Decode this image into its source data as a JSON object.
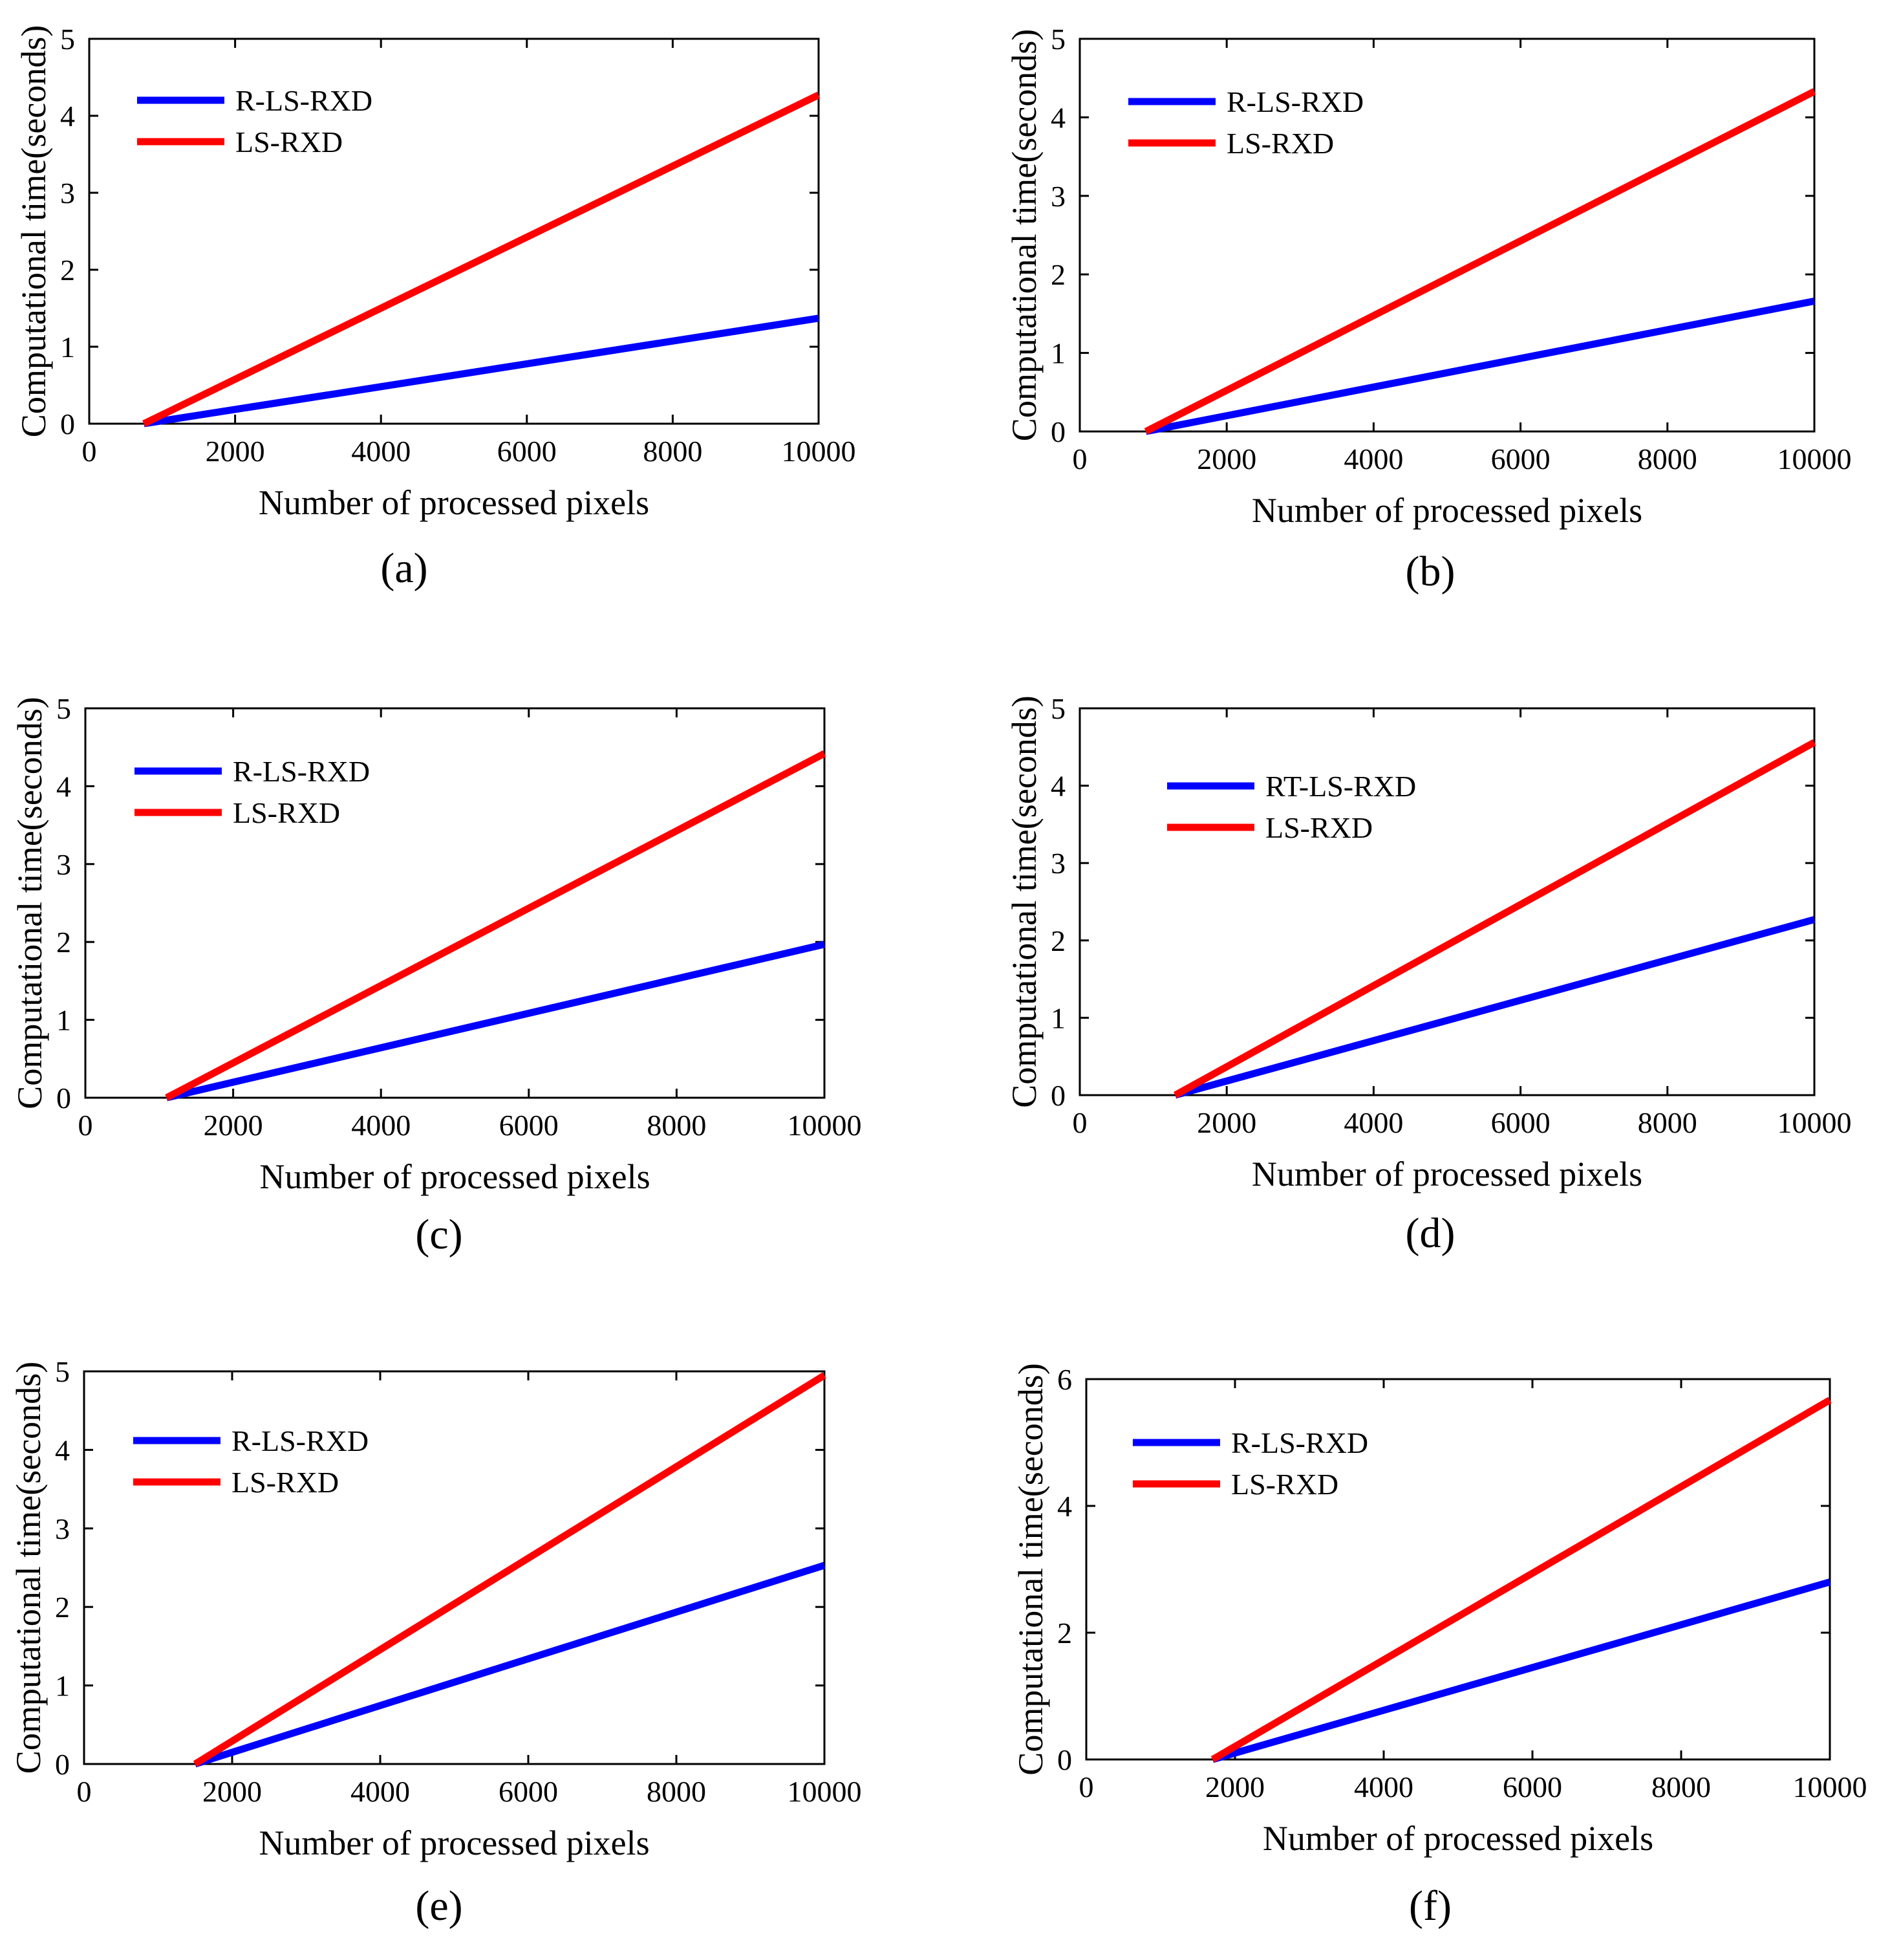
{
  "colors": {
    "blue": "#0000ff",
    "red": "#ff0000",
    "axis": "#000000"
  },
  "chart_data": [
    {
      "panel": "a",
      "label": "(a)",
      "type": "line",
      "xlabel": "Number of processed pixels",
      "ylabel": "Computational time(seconds)",
      "xlim": [
        0,
        10000
      ],
      "ylim": [
        0,
        5
      ],
      "xticks": [
        0,
        2000,
        4000,
        6000,
        8000,
        10000
      ],
      "yticks": [
        0,
        1,
        2,
        3,
        4,
        5
      ],
      "legend_position": "top-left",
      "series": [
        {
          "name": "R-LS-RXD",
          "color": "#0000ff",
          "x": [
            750,
            10000
          ],
          "y": [
            0,
            1.37
          ]
        },
        {
          "name": "LS-RXD",
          "color": "#ff0000",
          "x": [
            750,
            10000
          ],
          "y": [
            0,
            4.27
          ]
        }
      ]
    },
    {
      "panel": "b",
      "label": "(b)",
      "type": "line",
      "xlabel": "Number of processed pixels",
      "ylabel": "Computational time(seconds)",
      "xlim": [
        0,
        10000
      ],
      "ylim": [
        0,
        5
      ],
      "xticks": [
        0,
        2000,
        4000,
        6000,
        8000,
        10000
      ],
      "yticks": [
        0,
        1,
        2,
        3,
        4,
        5
      ],
      "legend_position": "top-left",
      "series": [
        {
          "name": "R-LS-RXD",
          "color": "#0000ff",
          "x": [
            900,
            10000
          ],
          "y": [
            0,
            1.66
          ]
        },
        {
          "name": "LS-RXD",
          "color": "#ff0000",
          "x": [
            900,
            10000
          ],
          "y": [
            0,
            4.33
          ]
        }
      ]
    },
    {
      "panel": "c",
      "label": "(c)",
      "type": "line",
      "xlabel": "Number of processed pixels",
      "ylabel": "Computational time(seconds)",
      "xlim": [
        0,
        10000
      ],
      "ylim": [
        0,
        5
      ],
      "xticks": [
        0,
        2000,
        4000,
        6000,
        8000,
        10000
      ],
      "yticks": [
        0,
        1,
        2,
        3,
        4,
        5
      ],
      "legend_position": "top-left",
      "series": [
        {
          "name": "R-LS-RXD",
          "color": "#0000ff",
          "x": [
            1100,
            10000
          ],
          "y": [
            0,
            1.97
          ]
        },
        {
          "name": "LS-RXD",
          "color": "#ff0000",
          "x": [
            1100,
            10000
          ],
          "y": [
            0,
            4.42
          ]
        }
      ]
    },
    {
      "panel": "d",
      "label": "(d)",
      "type": "line",
      "xlabel": "Number of processed pixels",
      "ylabel": "Computational time(seconds)",
      "xlim": [
        0,
        10000
      ],
      "ylim": [
        0,
        5
      ],
      "xticks": [
        0,
        2000,
        4000,
        6000,
        8000,
        10000
      ],
      "yticks": [
        0,
        1,
        2,
        3,
        4,
        5
      ],
      "legend_position": "top-left",
      "series": [
        {
          "name": "RT-LS-RXD",
          "color": "#0000ff",
          "x": [
            1300,
            10000
          ],
          "y": [
            0,
            2.27
          ]
        },
        {
          "name": "LS-RXD",
          "color": "#ff0000",
          "x": [
            1300,
            10000
          ],
          "y": [
            0,
            4.56
          ]
        }
      ]
    },
    {
      "panel": "e",
      "label": "(e)",
      "type": "line",
      "xlabel": "Number of processed pixels",
      "ylabel": "Computational time(seconds)",
      "xlim": [
        0,
        10000
      ],
      "ylim": [
        0,
        5
      ],
      "xticks": [
        0,
        2000,
        4000,
        6000,
        8000,
        10000
      ],
      "yticks": [
        0,
        1,
        2,
        3,
        4,
        5
      ],
      "legend_position": "top-left",
      "series": [
        {
          "name": "R-LS-RXD",
          "color": "#0000ff",
          "x": [
            1500,
            10000
          ],
          "y": [
            0,
            2.53
          ]
        },
        {
          "name": "LS-RXD",
          "color": "#ff0000",
          "x": [
            1500,
            10000
          ],
          "y": [
            0,
            4.95
          ]
        }
      ]
    },
    {
      "panel": "f",
      "label": "(f)",
      "type": "line",
      "xlabel": "Number of processed pixels",
      "ylabel": "Computational time(seconds)",
      "xlim": [
        0,
        10000
      ],
      "ylim": [
        0,
        6
      ],
      "xticks": [
        0,
        2000,
        4000,
        6000,
        8000,
        10000
      ],
      "yticks": [
        0,
        2,
        4,
        6
      ],
      "legend_position": "top-left",
      "series": [
        {
          "name": "R-LS-RXD",
          "color": "#0000ff",
          "x": [
            1700,
            10000
          ],
          "y": [
            0,
            2.8
          ]
        },
        {
          "name": "LS-RXD",
          "color": "#ff0000",
          "x": [
            1700,
            10000
          ],
          "y": [
            0,
            5.67
          ]
        }
      ]
    }
  ]
}
